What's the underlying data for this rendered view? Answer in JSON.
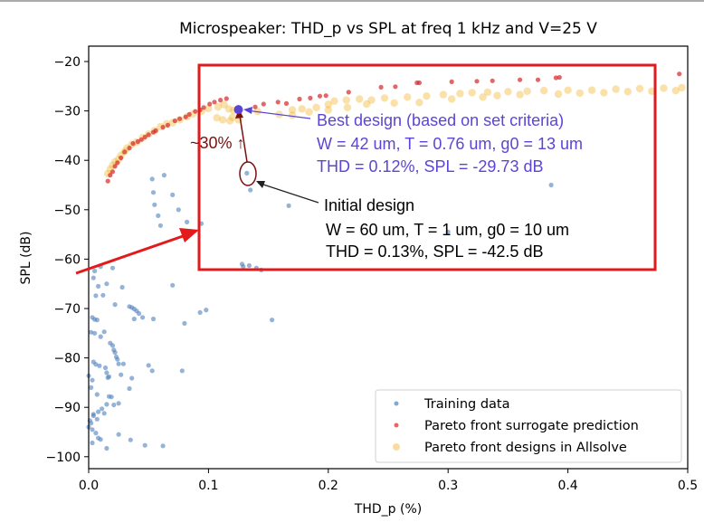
{
  "chart_data": {
    "type": "scatter",
    "title": "Microspeaker: THD_p vs SPL at freq 1 kHz and V=25 V",
    "xlabel": "THD_p (%)",
    "ylabel": "SPL (dB)",
    "xlim": [
      0.0,
      0.5
    ],
    "ylim": [
      -102.5,
      -17.5
    ],
    "xticks": [
      "0.0",
      "0.1",
      "0.2",
      "0.3",
      "0.4",
      "0.5"
    ],
    "xtick_values": [
      0.0,
      0.1,
      0.2,
      0.3,
      0.4,
      0.5
    ],
    "yticks": [
      "−20",
      "−30",
      "−40",
      "−50",
      "−60",
      "−70",
      "−80",
      "−90",
      "−100"
    ],
    "ytick_values": [
      -20,
      -30,
      -40,
      -50,
      -60,
      -70,
      -80,
      -90,
      -100
    ],
    "grid": false,
    "legend_position": "lower-right",
    "series": [
      {
        "name": "Training data",
        "color": "#4f81bd",
        "points": [
          [
            0.053,
            -43.8
          ],
          [
            0.063,
            -43
          ],
          [
            0.054,
            -46.5
          ],
          [
            0.055,
            -49
          ],
          [
            0.058,
            -51.2
          ],
          [
            0.06,
            -53.2
          ],
          [
            0.07,
            -47
          ],
          [
            0.075,
            -50
          ],
          [
            0.082,
            -52.5
          ],
          [
            0.094,
            -52.8
          ],
          [
            0.132,
            -42.6
          ],
          [
            0.135,
            -46
          ],
          [
            0.167,
            -49.2
          ],
          [
            0.3,
            -54.5
          ],
          [
            0.386,
            -45
          ],
          [
            0.128,
            -61
          ],
          [
            0.129,
            -61.5
          ],
          [
            0.134,
            -61.3
          ],
          [
            0.14,
            -61.8
          ],
          [
            0.144,
            -62.2
          ],
          [
            0.005,
            -62.4
          ],
          [
            0.01,
            -61.5
          ],
          [
            0.02,
            -61.8
          ],
          [
            0.004,
            -63.8
          ],
          [
            0.008,
            -65.5
          ],
          [
            0.015,
            -65
          ],
          [
            0.028,
            -65.7
          ],
          [
            0.07,
            -65.3
          ],
          [
            0.006,
            -67.4
          ],
          [
            0.012,
            -67.3
          ],
          [
            0.022,
            -69.2
          ],
          [
            0.034,
            -69.6
          ],
          [
            0.036,
            -69.8
          ],
          [
            0.038,
            -70.1
          ],
          [
            0.04,
            -70.5
          ],
          [
            0.042,
            -71
          ],
          [
            0.045,
            -71.8
          ],
          [
            0.08,
            -73
          ],
          [
            0.003,
            -71.8
          ],
          [
            0.005,
            -72.2
          ],
          [
            0.007,
            -72.3
          ],
          [
            0.093,
            -70.8
          ],
          [
            0.098,
            -70.3
          ],
          [
            0.153,
            -72.3
          ],
          [
            0.054,
            -72.1
          ],
          [
            0.038,
            -72.1
          ],
          [
            0.002,
            -74.8
          ],
          [
            0.005,
            -75
          ],
          [
            0.01,
            -75.7
          ],
          [
            0.013,
            -74.7
          ],
          [
            0.018,
            -77
          ],
          [
            0.02,
            -77.5
          ],
          [
            0.021,
            -78.4
          ],
          [
            0.022,
            -78.9
          ],
          [
            0.023,
            -79.8
          ],
          [
            0.024,
            -80.3
          ],
          [
            0.025,
            -81.2
          ],
          [
            0.029,
            -81.2
          ],
          [
            0.004,
            -80.8
          ],
          [
            0.006,
            -81.3
          ],
          [
            0.009,
            -81.6
          ],
          [
            0.014,
            -82
          ],
          [
            0.015,
            -83
          ],
          [
            0.016,
            -84
          ],
          [
            0.017,
            -83.8
          ],
          [
            0.027,
            -83.4
          ],
          [
            0.036,
            -84.1
          ],
          [
            0.0,
            -83.6
          ],
          [
            0.003,
            -84.5
          ],
          [
            0.002,
            -86
          ],
          [
            0.007,
            -87.4
          ],
          [
            0.017,
            -87.8
          ],
          [
            0.019,
            -87.9
          ],
          [
            0.015,
            -89.4
          ],
          [
            0.011,
            -90.3
          ],
          [
            0.008,
            -90.9
          ],
          [
            0.004,
            -91.7
          ],
          [
            0.001,
            -92.7
          ],
          [
            0.002,
            -93.2
          ],
          [
            0.0,
            -94
          ],
          [
            0.004,
            -91.4
          ],
          [
            0.007,
            -92.4
          ],
          [
            0.013,
            -91.2
          ],
          [
            0.021,
            -89.5
          ],
          [
            0.025,
            -89.2
          ],
          [
            0.034,
            -86.2
          ],
          [
            0.053,
            -82.6
          ],
          [
            0.078,
            -82.6
          ],
          [
            0.05,
            -81.5
          ],
          [
            0.003,
            -94.5
          ],
          [
            0.006,
            -95.2
          ],
          [
            0.008,
            -96.2
          ],
          [
            0.01,
            -96.5
          ],
          [
            0.003,
            -97.2
          ],
          [
            0.015,
            -98.3
          ],
          [
            0.035,
            -96.6
          ],
          [
            0.047,
            -97.7
          ],
          [
            0.062,
            -97.8
          ],
          [
            0.025,
            -95.5
          ]
        ]
      },
      {
        "name": "Pareto front surrogate prediction",
        "color": "#d62728",
        "points": [
          [
            0.016,
            -44.2
          ],
          [
            0.018,
            -43
          ],
          [
            0.02,
            -42.3
          ],
          [
            0.022,
            -41.2
          ],
          [
            0.024,
            -40.5
          ],
          [
            0.027,
            -39.5
          ],
          [
            0.03,
            -38.3
          ],
          [
            0.034,
            -37.5
          ],
          [
            0.037,
            -36.6
          ],
          [
            0.041,
            -36.2
          ],
          [
            0.044,
            -35.8
          ],
          [
            0.047,
            -35.3
          ],
          [
            0.05,
            -34.8
          ],
          [
            0.054,
            -34.3
          ],
          [
            0.056,
            -34
          ],
          [
            0.062,
            -33.3
          ],
          [
            0.066,
            -32.9
          ],
          [
            0.072,
            -32
          ],
          [
            0.076,
            -31.6
          ],
          [
            0.081,
            -31.2
          ],
          [
            0.084,
            -30.7
          ],
          [
            0.089,
            -30.1
          ],
          [
            0.093,
            -29.8
          ],
          [
            0.096,
            -29.3
          ],
          [
            0.101,
            -28.6
          ],
          [
            0.105,
            -28.2
          ],
          [
            0.11,
            -27.8
          ],
          [
            0.115,
            -27.5
          ],
          [
            0.139,
            -29.2
          ],
          [
            0.146,
            -28.6
          ],
          [
            0.158,
            -28.2
          ],
          [
            0.165,
            -28.5
          ],
          [
            0.176,
            -27.6
          ],
          [
            0.185,
            -27.4
          ],
          [
            0.193,
            -27
          ],
          [
            0.198,
            -26.9
          ],
          [
            0.217,
            -26.2
          ],
          [
            0.244,
            -25.2
          ],
          [
            0.256,
            -25.1
          ],
          [
            0.274,
            -24.3
          ],
          [
            0.276,
            -24.3
          ],
          [
            0.303,
            -24.1
          ],
          [
            0.324,
            -24
          ],
          [
            0.337,
            -23.9
          ],
          [
            0.36,
            -23.7
          ],
          [
            0.375,
            -23.7
          ],
          [
            0.39,
            -23.3
          ],
          [
            0.393,
            -23.2
          ],
          [
            0.493,
            -22.5
          ]
        ]
      },
      {
        "name": "Pareto front designs in Allsolve",
        "color": "#f0b429",
        "points": [
          [
            0.016,
            -42.7
          ],
          [
            0.018,
            -41.8
          ],
          [
            0.02,
            -41
          ],
          [
            0.022,
            -40.3
          ],
          [
            0.025,
            -39.8
          ],
          [
            0.027,
            -39
          ],
          [
            0.03,
            -38.2
          ],
          [
            0.032,
            -37.5
          ],
          [
            0.036,
            -36.8
          ],
          [
            0.04,
            -36.3
          ],
          [
            0.045,
            -35.4
          ],
          [
            0.05,
            -34.7
          ],
          [
            0.055,
            -34
          ],
          [
            0.06,
            -33.2
          ],
          [
            0.065,
            -32.6
          ],
          [
            0.07,
            -32.4
          ],
          [
            0.076,
            -31.8
          ],
          [
            0.082,
            -31.2
          ],
          [
            0.087,
            -30.6
          ],
          [
            0.094,
            -30.1
          ],
          [
            0.1,
            -29.5
          ],
          [
            0.108,
            -29.2
          ],
          [
            0.113,
            -28.7
          ],
          [
            0.117,
            -29.6
          ],
          [
            0.121,
            -29.9
          ],
          [
            0.141,
            -30.1
          ],
          [
            0.159,
            -30.7
          ],
          [
            0.17,
            -30.9
          ],
          [
            0.184,
            -30.2
          ],
          [
            0.2,
            -29.8
          ],
          [
            0.216,
            -29.3
          ],
          [
            0.232,
            -28.6
          ],
          [
            0.255,
            -28.4
          ],
          [
            0.276,
            -28.3
          ],
          [
            0.303,
            -27.6
          ],
          [
            0.329,
            -27.2
          ],
          [
            0.341,
            -26.9
          ],
          [
            0.36,
            -26.7
          ],
          [
            0.392,
            -26.6
          ],
          [
            0.41,
            -26.4
          ],
          [
            0.43,
            -26.3
          ],
          [
            0.45,
            -26.1
          ],
          [
            0.47,
            -26
          ],
          [
            0.49,
            -25.9
          ],
          [
            0.12,
            -31.3
          ],
          [
            0.125,
            -31.8
          ],
          [
            0.118,
            -32
          ],
          [
            0.205,
            -28
          ],
          [
            0.215,
            -27.8
          ],
          [
            0.226,
            -27.6
          ],
          [
            0.236,
            -27.8
          ],
          [
            0.247,
            -27.4
          ],
          [
            0.266,
            -27.2
          ],
          [
            0.282,
            -27
          ],
          [
            0.296,
            -26.7
          ],
          [
            0.31,
            -26.5
          ],
          [
            0.32,
            -26.3
          ],
          [
            0.333,
            -26.2
          ],
          [
            0.35,
            -26.1
          ],
          [
            0.366,
            -26
          ],
          [
            0.38,
            -25.9
          ],
          [
            0.4,
            -25.8
          ],
          [
            0.42,
            -25.8
          ],
          [
            0.44,
            -25.6
          ],
          [
            0.46,
            -25.5
          ],
          [
            0.48,
            -25.4
          ],
          [
            0.495,
            -25.3
          ],
          [
            0.17,
            -29.8
          ],
          [
            0.178,
            -29.6
          ],
          [
            0.19,
            -29.3
          ],
          [
            0.2,
            -28.7
          ],
          [
            0.107,
            -31.4
          ],
          [
            0.112,
            -31.8
          ]
        ]
      }
    ],
    "highlight_points": {
      "best_design": {
        "thd": 0.125,
        "spl": -29.73,
        "color": "#5b45d6"
      },
      "initial_design": {
        "thd": 0.13,
        "spl": -42.5
      }
    },
    "annotations": {
      "improvement_label": "~30% ↑",
      "best_design_lines": [
        "Best design (based on set criteria)",
        "W = 42 um, T = 0.76 um, g0 = 13 um",
        "THD = 0.12%, SPL = -29.73 dB"
      ],
      "initial_design_lines": [
        "Initial design",
        "W = 60 um, T = 1 um, g0 = 10 um",
        "THD = 0.13%, SPL = -42.5 dB"
      ],
      "highlight_box_color": "#e31a1c",
      "best_text_color": "#5b45d6",
      "initial_text_color": "#000000",
      "improvement_color": "#7b0f0f"
    },
    "legend": [
      {
        "label": "Training data",
        "color": "#4f81bd"
      },
      {
        "label": "Pareto front surrogate prediction",
        "color": "#d62728"
      },
      {
        "label": "Pareto front designs in Allsolve",
        "color": "#f0b429"
      }
    ]
  }
}
